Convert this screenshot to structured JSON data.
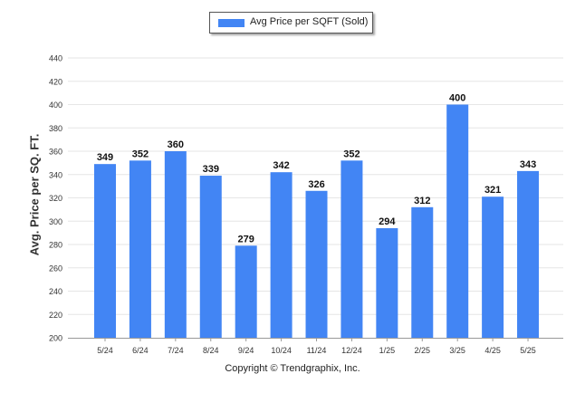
{
  "chart_data": {
    "type": "bar",
    "legend": {
      "label": "Avg Price per SQFT (Sold)",
      "placement": "top-center"
    },
    "ylabel": "Avg. Price per SQ. FT.",
    "xlabel": "",
    "credit": "Copyright © Trendgraphix, Inc.",
    "categories": [
      "5/24",
      "6/24",
      "7/24",
      "8/24",
      "9/24",
      "10/24",
      "11/24",
      "12/24",
      "1/25",
      "2/25",
      "3/25",
      "4/25",
      "5/25"
    ],
    "series": [
      {
        "name": "Avg Price per SQFT (Sold)",
        "values": [
          349,
          352,
          360,
          339,
          279,
          342,
          326,
          352,
          294,
          312,
          400,
          321,
          343
        ]
      }
    ],
    "ylim": [
      200,
      440
    ],
    "yticks": [
      200,
      220,
      240,
      260,
      280,
      300,
      320,
      340,
      360,
      380,
      400,
      420,
      440
    ],
    "grid": true,
    "colors": {
      "bar": "#4285f4",
      "grid": "#e6e6e6",
      "axis": "#999999"
    }
  }
}
